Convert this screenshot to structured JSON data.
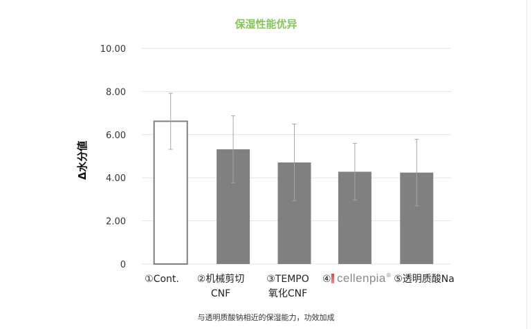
{
  "title": "保湿性能优异",
  "caption": "与透明质酸钠相近的保湿能力，功效加成",
  "colors": {
    "title": "#86c35a",
    "bar_fill": "#808080",
    "bar_outline": "#7f7f7f",
    "grid": "#e3e3e3",
    "error_bar": "#a6a6a6"
  },
  "logo": {
    "text": "cellenpia",
    "mark": "®"
  },
  "chart_data": {
    "type": "bar",
    "ylabel": "Δ水分値",
    "ylim": [
      0,
      10
    ],
    "yticks": [
      "0",
      "2.00",
      "4.00",
      "6.00",
      "8.00",
      "10.00"
    ],
    "grid": true,
    "categories": [
      {
        "line1": "①Cont.",
        "line2": ""
      },
      {
        "line1": "②机械剪切",
        "line2": "CNF"
      },
      {
        "line1": "③TEMPO",
        "line2": "氧化CNF"
      },
      {
        "line1": "④",
        "line2": ""
      },
      {
        "line1": "⑤透明质酸Na",
        "line2": ""
      }
    ],
    "values": [
      6.62,
      5.32,
      4.71,
      4.28,
      4.24
    ],
    "errors": [
      1.3,
      1.55,
      1.78,
      1.31,
      1.54
    ],
    "styles": [
      "outline",
      "filled",
      "filled",
      "filled",
      "filled"
    ]
  }
}
